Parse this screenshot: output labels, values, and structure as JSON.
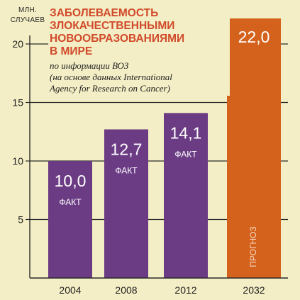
{
  "unit_label": [
    "МЛН.",
    "СЛУЧАЕВ"
  ],
  "title_lines": [
    "ЗАБОЛЕВАЕМОСТЬ",
    "ЗЛОКАЧЕСТВЕННЫМИ",
    "НОВООБРАЗОВАНИЯМИ",
    "В МИРЕ"
  ],
  "subtitle_lines": [
    "по информации ВОЗ",
    "(на основе данных International",
    "Agency for Research on Cancer)"
  ],
  "colors": {
    "background": "#f3eec5",
    "actual_bar": "#6b3c84",
    "forecast_bar": "#d4621c",
    "title": "#d14a2b",
    "gridline": "#2b2b2b"
  },
  "chart_data": {
    "type": "bar",
    "title": "ЗАБОЛЕВАЕМОСТЬ ЗЛОКАЧЕСТВЕННЫМИ НОВООБРАЗОВАНИЯМИ В МИРЕ",
    "subtitle": "по информации ВОЗ (на основе данных International Agency for Research on Cancer)",
    "ylabel": "МЛН. СЛУЧАЕВ",
    "xlabel": "",
    "categories": [
      "2004",
      "2008",
      "2012",
      "2032"
    ],
    "values": [
      10.0,
      12.7,
      14.1,
      22.0
    ],
    "value_labels": [
      "10,0",
      "12,7",
      "14,1",
      "22,0"
    ],
    "bar_notes": [
      "ФАКТ",
      "ФАКТ",
      "ФАКТ",
      "ПРОГНОЗ"
    ],
    "bar_kind": [
      "actual",
      "actual",
      "actual",
      "forecast"
    ],
    "ylim": [
      0,
      23
    ],
    "yticks": [
      5,
      10,
      15,
      20
    ],
    "ytick_labels": [
      "5",
      "10",
      "15",
      "20"
    ],
    "grid": true,
    "legend": "none"
  }
}
